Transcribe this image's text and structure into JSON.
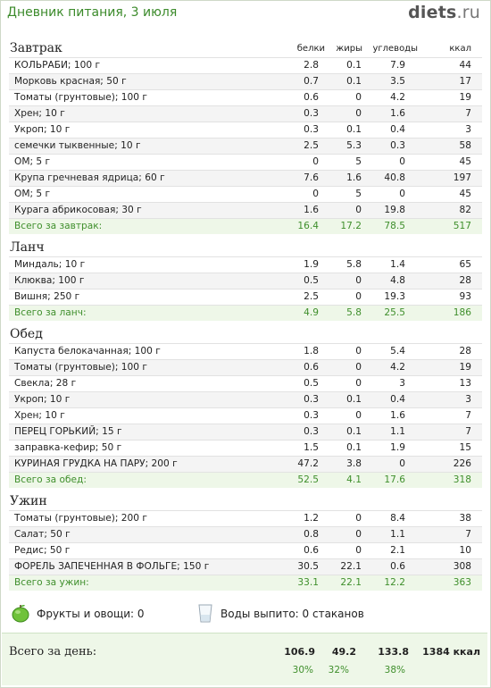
{
  "header": {
    "title": "Дневник питания, 3 июля",
    "logo_main": "diets",
    "logo_tld": ".ru"
  },
  "columns": {
    "protein": "белки",
    "fat": "жиры",
    "carbs": "углеводы",
    "kcal": "ккал"
  },
  "meals": [
    {
      "title": "Завтрак",
      "items": [
        [
          "КОЛЬРАБИ; 100 г",
          "2.8",
          "0.1",
          "7.9",
          "44"
        ],
        [
          "Морковь красная; 50 г",
          "0.7",
          "0.1",
          "3.5",
          "17"
        ],
        [
          "Томаты (грунтовые); 100 г",
          "0.6",
          "0",
          "4.2",
          "19"
        ],
        [
          "Хрен; 10 г",
          "0.3",
          "0",
          "1.6",
          "7"
        ],
        [
          "Укроп; 10 г",
          "0.3",
          "0.1",
          "0.4",
          "3"
        ],
        [
          "семечки тыквенные; 10 г",
          "2.5",
          "5.3",
          "0.3",
          "58"
        ],
        [
          "ОМ; 5 г",
          "0",
          "5",
          "0",
          "45"
        ],
        [
          "Крупа гречневая ядрица; 60 г",
          "7.6",
          "1.6",
          "40.8",
          "197"
        ],
        [
          "ОМ; 5 г",
          "0",
          "5",
          "0",
          "45"
        ],
        [
          "Курага абрикосовая; 30 г",
          "1.6",
          "0",
          "19.8",
          "82"
        ]
      ],
      "total": [
        "Всего за завтрак:",
        "16.4",
        "17.2",
        "78.5",
        "517"
      ]
    },
    {
      "title": "Ланч",
      "items": [
        [
          "Миндаль; 10 г",
          "1.9",
          "5.8",
          "1.4",
          "65"
        ],
        [
          "Клюква; 100 г",
          "0.5",
          "0",
          "4.8",
          "28"
        ],
        [
          "Вишня; 250 г",
          "2.5",
          "0",
          "19.3",
          "93"
        ]
      ],
      "total": [
        "Всего за ланч:",
        "4.9",
        "5.8",
        "25.5",
        "186"
      ]
    },
    {
      "title": "Обед",
      "items": [
        [
          "Капуста белокачанная; 100 г",
          "1.8",
          "0",
          "5.4",
          "28"
        ],
        [
          "Томаты (грунтовые); 100 г",
          "0.6",
          "0",
          "4.2",
          "19"
        ],
        [
          "Свекла; 28 г",
          "0.5",
          "0",
          "3",
          "13"
        ],
        [
          "Укроп; 10 г",
          "0.3",
          "0.1",
          "0.4",
          "3"
        ],
        [
          "Хрен; 10 г",
          "0.3",
          "0",
          "1.6",
          "7"
        ],
        [
          "ПЕРЕЦ ГОРЬКИЙ; 15 г",
          "0.3",
          "0.1",
          "1.1",
          "7"
        ],
        [
          "заправка-кефир; 50 г",
          "1.5",
          "0.1",
          "1.9",
          "15"
        ],
        [
          "КУРИНАЯ ГРУДКА НА ПАРУ; 200 г",
          "47.2",
          "3.8",
          "0",
          "226"
        ]
      ],
      "total": [
        "Всего за обед:",
        "52.5",
        "4.1",
        "17.6",
        "318"
      ]
    },
    {
      "title": "Ужин",
      "items": [
        [
          "Томаты (грунтовые); 200 г",
          "1.2",
          "0",
          "8.4",
          "38"
        ],
        [
          "Салат; 50 г",
          "0.8",
          "0",
          "1.1",
          "7"
        ],
        [
          "Редис; 50 г",
          "0.6",
          "0",
          "2.1",
          "10"
        ],
        [
          "ФОРЕЛЬ ЗАПЕЧЕННАЯ В ФОЛЬГЕ; 150 г",
          "30.5",
          "22.1",
          "0.6",
          "308"
        ]
      ],
      "total": [
        "Всего за ужин:",
        "33.1",
        "22.1",
        "12.2",
        "363"
      ]
    }
  ],
  "extras": {
    "fruits": "Фрукты и овощи: 0",
    "water": "Воды выпито: 0 стаканов"
  },
  "day_total": {
    "label": "Всего за день:",
    "protein": "106.9",
    "fat": "49.2",
    "carbs": "133.8",
    "kcal": "1384 ккал",
    "protein_pct": "30%",
    "fat_pct": "32%",
    "carbs_pct": "38%"
  },
  "colors": {
    "accent_green": "#3f8f2c",
    "total_bg": "#eef7e8"
  },
  "icons": {
    "fruit": "green-apple-icon",
    "water": "water-glass-icon"
  }
}
